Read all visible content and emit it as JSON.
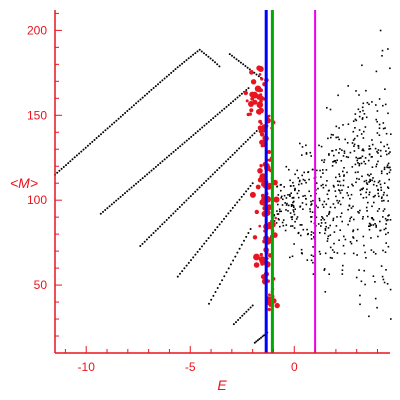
{
  "chart_data": {
    "type": "scatter",
    "xlabel": "E",
    "ylabel": "<M>",
    "xlim": [
      -11.5,
      4.6
    ],
    "ylim": [
      10,
      212
    ],
    "xticks": [
      -10,
      -5,
      0
    ],
    "yticks": [
      50,
      100,
      150,
      200
    ],
    "grid": false,
    "colors": {
      "axes": "#e8141e",
      "points": "#000000",
      "red_points": "#e8141e",
      "blue_line": "#0000ff",
      "green_line": "#00aa00",
      "magenta_line": "#ee00ee"
    },
    "vertical_lines": [
      {
        "color": "#0000ff",
        "x": -1.35
      },
      {
        "color": "#00aa00",
        "x": -1.05
      },
      {
        "color": "#ee00ee",
        "x": 1.0
      }
    ],
    "branches": [
      {
        "x_start": -11.5,
        "y_start": 115,
        "x_end": -3.6,
        "y_end": 190,
        "peak": true
      },
      {
        "x_start": -9.3,
        "y_start": 92,
        "x_end": -2.2,
        "y_end": 166
      },
      {
        "x_start": -7.4,
        "y_start": 73,
        "x_end": -1.7,
        "y_end": 142
      },
      {
        "x_start": -5.6,
        "y_start": 55,
        "x_end": -2.0,
        "y_end": 110
      },
      {
        "x_start": -4.1,
        "y_start": 39,
        "x_end": -2.1,
        "y_end": 83
      },
      {
        "x_start": -2.9,
        "y_start": 27,
        "x_end": -2.0,
        "y_end": 38
      },
      {
        "x_start": -1.9,
        "y_start": 16,
        "x_end": -1.3,
        "y_end": 22
      }
    ],
    "scatter_cloud": {
      "x_range": [
        -1.2,
        4.6
      ],
      "y_center_at_left": 95,
      "y_center_at_right": 112,
      "count": 620
    },
    "red_cluster": {
      "x_center": -1.4,
      "y_range": [
        35,
        180
      ],
      "count": 140
    }
  }
}
